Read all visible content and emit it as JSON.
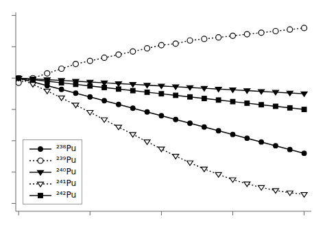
{
  "chart_data": {
    "type": "line",
    "x": [
      0,
      1,
      2,
      3,
      4,
      5,
      6,
      7,
      8,
      9,
      10,
      11,
      12,
      13,
      14,
      15,
      16,
      17,
      18,
      19,
      20
    ],
    "series": [
      {
        "name": "²³⁸Pu",
        "color": "black",
        "marker": "circle",
        "line_style": "solid",
        "values": [
          1.0,
          0.976,
          0.952,
          0.928,
          0.904,
          0.88,
          0.856,
          0.832,
          0.808,
          0.784,
          0.76,
          0.736,
          0.712,
          0.688,
          0.664,
          0.64,
          0.616,
          0.592,
          0.568,
          0.544,
          0.52
        ]
      },
      {
        "name": "²³⁹Pu",
        "color": "black",
        "marker": "circle-open",
        "line_style": "dotted",
        "values": [
          0.97,
          1.0,
          1.03,
          1.06,
          1.09,
          1.11,
          1.13,
          1.15,
          1.17,
          1.19,
          1.21,
          1.22,
          1.24,
          1.25,
          1.26,
          1.27,
          1.28,
          1.29,
          1.3,
          1.31,
          1.32
        ]
      },
      {
        "name": "²⁴⁰Pu",
        "color": "black",
        "marker": "triangle-down",
        "line_style": "solid",
        "values": [
          1.0,
          0.995,
          0.99,
          0.985,
          0.98,
          0.975,
          0.97,
          0.965,
          0.96,
          0.955,
          0.95,
          0.945,
          0.94,
          0.935,
          0.93,
          0.925,
          0.92,
          0.915,
          0.91,
          0.905,
          0.9
        ]
      },
      {
        "name": "²⁴¹Pu",
        "color": "black",
        "marker": "triangle-down-open",
        "line_style": "dotted",
        "values": [
          1.0,
          0.96,
          0.918,
          0.874,
          0.828,
          0.782,
          0.735,
          0.688,
          0.641,
          0.594,
          0.548,
          0.502,
          0.46,
          0.42,
          0.385,
          0.352,
          0.325,
          0.302,
          0.283,
          0.268,
          0.258
        ]
      },
      {
        "name": "²⁴²Pu",
        "color": "black",
        "marker": "square",
        "line_style": "solid",
        "values": [
          1.0,
          0.99,
          0.98,
          0.97,
          0.96,
          0.95,
          0.94,
          0.93,
          0.92,
          0.91,
          0.9,
          0.89,
          0.88,
          0.87,
          0.86,
          0.85,
          0.84,
          0.83,
          0.82,
          0.81,
          0.8
        ]
      }
    ],
    "xlim": [
      -0.2,
      20.5
    ],
    "ylim": [
      0.15,
      1.42
    ],
    "xticks": [
      0,
      5,
      10,
      15,
      20
    ],
    "yticks": [
      0.2,
      0.4,
      0.6,
      0.8,
      1.0,
      1.2,
      1.4
    ],
    "tick_labels": false,
    "grid": false,
    "legend": "lower left"
  }
}
